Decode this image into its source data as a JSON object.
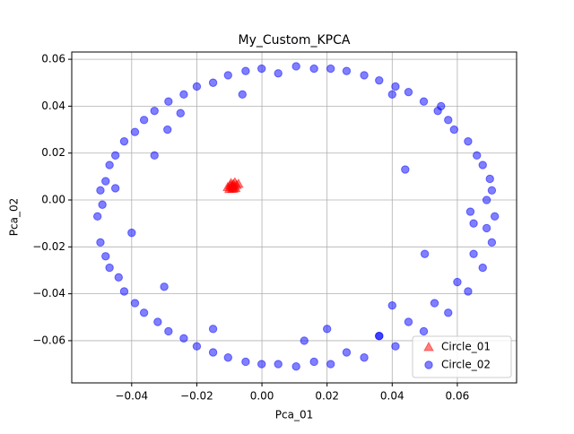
{
  "chart_data": {
    "type": "scatter",
    "title": "My_Custom_KPCA",
    "xlabel": "Pca_01",
    "ylabel": "Pca_02",
    "xlim": [
      -0.0584,
      0.0782
    ],
    "ylim": [
      -0.078,
      0.0631
    ],
    "xticks": [
      {
        "value": -0.04,
        "label": "−0.04"
      },
      {
        "value": -0.02,
        "label": "−0.02"
      },
      {
        "value": 0,
        "label": "0.00"
      },
      0.02,
      0.04,
      0.06
    ],
    "yticks": [
      {
        "value": -0.06,
        "label": "−0.06"
      },
      {
        "value": -0.04,
        "label": "−0.04"
      },
      {
        "value": -0.02,
        "label": "−0.02"
      },
      {
        "value": 0,
        "label": "0.00"
      },
      0.02,
      0.04,
      0.06
    ],
    "grid": true,
    "legend": "lower right",
    "series": [
      {
        "name": "Circle_01",
        "color": "#ff0000",
        "marker": "triangle",
        "x": [
          -0.0105,
          -0.0098,
          -0.0092,
          -0.0088,
          -0.0085,
          -0.0081,
          -0.0078,
          -0.0095,
          -0.01,
          -0.009,
          -0.0083,
          -0.0072,
          -0.0087,
          -0.0093
        ],
        "y": [
          0.0055,
          0.0062,
          0.0048,
          0.0068,
          0.0058,
          0.0051,
          0.0064,
          0.0072,
          0.0047,
          0.0056,
          0.0075,
          0.0069,
          0.0049,
          0.0061
        ]
      },
      {
        "name": "Circle_02",
        "color": "#0000ff",
        "marker": "circle",
        "x": [
          0.0715,
          0.0706,
          0.0678,
          0.0633,
          0.0572,
          0.0497,
          0.041,
          0.0314,
          0.0211,
          0.0105,
          -0.0001,
          -0.0104,
          -0.02,
          -0.0287,
          -0.0362,
          -0.0423,
          -0.0468,
          -0.0496,
          -0.0505,
          -0.0496,
          -0.0468,
          -0.0423,
          -0.0362,
          -0.0287,
          -0.02,
          -0.0104,
          -0.0001,
          0.0105,
          0.0211,
          0.0314,
          0.041,
          0.0497,
          0.0572,
          0.0633,
          0.0678,
          0.0706,
          0.069,
          0.066,
          0.059,
          0.054,
          0.045,
          0.036,
          0.026,
          0.016,
          0.005,
          -0.005,
          -0.015,
          -0.024,
          -0.033,
          -0.039,
          -0.045,
          -0.048,
          -0.049,
          -0.048,
          -0.044,
          -0.039,
          -0.032,
          -0.024,
          -0.015,
          -0.005,
          0.005,
          0.016,
          0.026,
          0.036,
          0.045,
          0.053,
          0.06,
          0.065,
          0.069,
          0.07,
          -0.033,
          -0.04,
          -0.029,
          0.044,
          0.05,
          0.065,
          -0.03,
          -0.015,
          0.02,
          0.04,
          -0.025,
          0.04,
          0.055,
          -0.045,
          0.064,
          -0.006,
          0.013,
          0.036
        ],
        "y": [
          -0.007,
          0.0041,
          0.0149,
          0.025,
          0.0341,
          0.042,
          0.0484,
          0.0532,
          0.056,
          0.057,
          0.056,
          0.0532,
          0.0484,
          0.042,
          0.0341,
          0.025,
          0.0149,
          0.0041,
          -0.007,
          -0.0181,
          -0.0289,
          -0.039,
          -0.0481,
          -0.056,
          -0.0624,
          -0.0672,
          -0.07,
          -0.071,
          -0.07,
          -0.0672,
          -0.0624,
          -0.056,
          -0.0481,
          -0.039,
          -0.0289,
          -0.0181,
          0.0,
          0.019,
          0.03,
          0.038,
          0.046,
          0.051,
          0.055,
          0.056,
          0.054,
          0.055,
          0.05,
          0.045,
          0.038,
          0.029,
          0.019,
          0.008,
          -0.002,
          -0.024,
          -0.033,
          -0.044,
          -0.052,
          -0.059,
          -0.065,
          -0.069,
          -0.07,
          -0.069,
          -0.065,
          -0.058,
          -0.052,
          -0.044,
          -0.035,
          -0.023,
          -0.012,
          0.009,
          0.019,
          -0.014,
          0.03,
          0.013,
          -0.023,
          -0.01,
          -0.037,
          -0.055,
          -0.055,
          -0.045,
          0.037,
          0.045,
          0.04,
          0.005,
          -0.005,
          0.045,
          -0.06,
          -0.058
        ]
      }
    ]
  }
}
